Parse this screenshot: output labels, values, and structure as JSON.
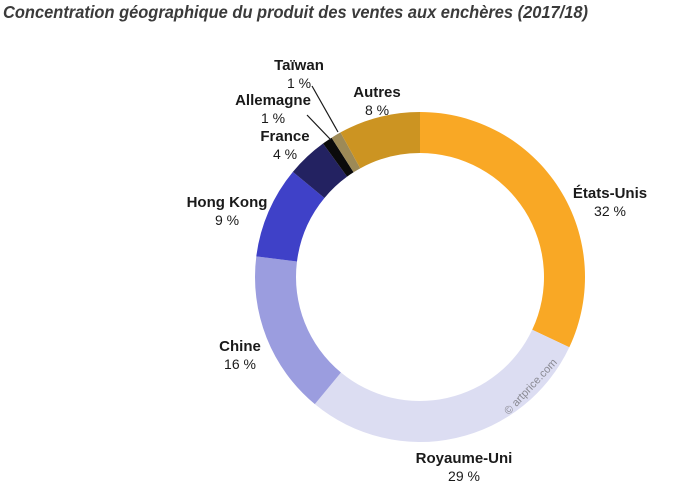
{
  "title": "Concentration géographique du produit des ventes aux enchères (2017/18)",
  "watermark": "© artprice.com",
  "chart_data": {
    "type": "pie",
    "subtype": "donut",
    "title": "Concentration géographique du produit des ventes aux enchères (2017/18)",
    "unit": "%",
    "start_angle_deg_from_top": 0,
    "direction": "clockwise",
    "legend_position": "labels-around-donut",
    "segments": [
      {
        "label": "États-Unis",
        "value": 32,
        "display": "32 %",
        "color": "#F9A825"
      },
      {
        "label": "Royaume-Uni",
        "value": 29,
        "display": "29 %",
        "color": "#DCDDF2"
      },
      {
        "label": "Chine",
        "value": 16,
        "display": "16 %",
        "color": "#9B9DDF"
      },
      {
        "label": "Hong Kong",
        "value": 9,
        "display": "9 %",
        "color": "#3F41C8"
      },
      {
        "label": "France",
        "value": 4,
        "display": "4 %",
        "color": "#232261"
      },
      {
        "label": "Allemagne",
        "value": 1,
        "display": "1 %",
        "color": "#0B0B0B"
      },
      {
        "label": "Taïwan",
        "value": 1,
        "display": "1 %",
        "color": "#9D8A57"
      },
      {
        "label": "Autres",
        "value": 8,
        "display": "8 %",
        "color": "#CC9422"
      }
    ]
  }
}
